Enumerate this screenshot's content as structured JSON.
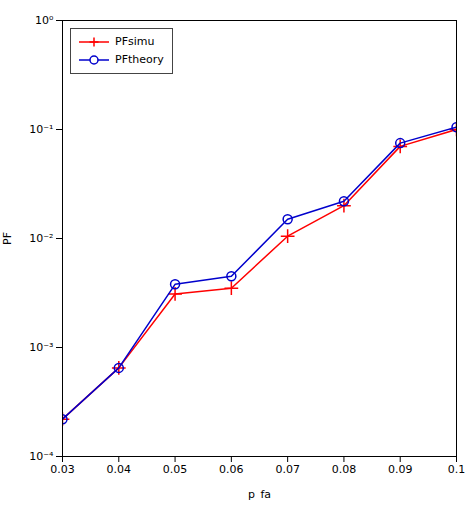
{
  "chart_data": {
    "type": "line",
    "xlabel": "p_fa",
    "ylabel": "PF",
    "x": [
      0.03,
      0.04,
      0.05,
      0.06,
      0.07,
      0.08,
      0.09,
      0.1
    ],
    "series": [
      {
        "name": "PFsimu",
        "color": "#FF0000",
        "marker": "plus",
        "line_style": "solid",
        "values": [
          0.00022,
          0.00065,
          0.0031,
          0.0035,
          0.0105,
          0.02,
          0.07,
          0.1
        ]
      },
      {
        "name": "PFtheory",
        "color": "#0000CC",
        "marker": "circle",
        "line_style": "solid",
        "values": [
          0.00022,
          0.00065,
          0.0038,
          0.0045,
          0.015,
          0.022,
          0.075,
          0.105
        ]
      }
    ],
    "xlim": [
      0.03,
      0.1
    ],
    "ylim": [
      0.0001,
      1
    ],
    "xticks": [
      0.03,
      0.04,
      0.05,
      0.06,
      0.07,
      0.08,
      0.09,
      0.1
    ],
    "yticks": [
      {
        "value": 0.0001,
        "label": "10⁻⁴"
      },
      {
        "value": 0.001,
        "label": "10⁻³"
      },
      {
        "value": 0.01,
        "label": "10⁻²"
      },
      {
        "value": 0.1,
        "label": "10⁻¹"
      },
      {
        "value": 1,
        "label": "10⁰"
      }
    ],
    "log": "y",
    "grid": false,
    "legend": "upper left"
  }
}
